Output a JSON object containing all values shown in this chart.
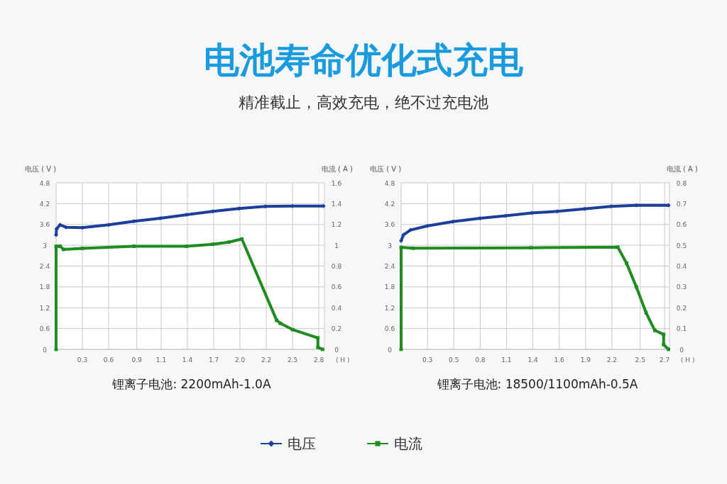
{
  "chart_data": [
    {
      "type": "other",
      "title": "电池寿命优化式充电",
      "subtitle": "精准截止，高效充电，绝不过充电池"
    },
    {
      "type": "line",
      "title": "锂离子电池: 2200mAh-1.0A",
      "ylabel": "电压 ( V )",
      "y2label": "电流 ( A )",
      "xlabel": "( H )",
      "xlim": [
        0,
        2.86
      ],
      "ylim": [
        0,
        4.8
      ],
      "y2lim": [
        0,
        1.6
      ],
      "xticks": [
        {
          "value": 0.28,
          "label": "0.3"
        },
        {
          "value": 0.56,
          "label": "0.6"
        },
        {
          "value": 0.86,
          "label": "0.9"
        },
        {
          "value": 1.12,
          "label": "1.1"
        },
        {
          "value": 1.4,
          "label": "1.4"
        },
        {
          "value": 1.68,
          "label": "1.7"
        },
        {
          "value": 1.96,
          "label": "2.0"
        },
        {
          "value": 2.24,
          "label": "2.2"
        },
        {
          "value": 2.52,
          "label": "2.5"
        },
        {
          "value": 2.8,
          "label": "2.8"
        }
      ],
      "yticks": [
        0,
        0.6,
        1.2,
        1.8,
        2.4,
        3,
        3.6,
        4.2,
        4.8
      ],
      "y2ticks": [
        0,
        0.2,
        0.4,
        0.6,
        0.8,
        1,
        1.2,
        1.4,
        1.6
      ],
      "grid": true,
      "legend": "bottom",
      "series": [
        {
          "name": "电压",
          "color": "#1c3f9e",
          "marker": "diamond",
          "x": [
            0,
            0.005,
            0.043,
            0.105,
            0.28,
            0.56,
            0.83,
            1.11,
            1.39,
            1.67,
            1.95,
            2.23,
            2.52,
            2.85
          ],
          "values": [
            3.3,
            3.47,
            3.59,
            3.52,
            3.51,
            3.59,
            3.69,
            3.78,
            3.88,
            3.98,
            4.06,
            4.12,
            4.13,
            4.13
          ]
        },
        {
          "name": "电流",
          "color": "#1e8c1e",
          "marker": "square",
          "axis": "y2",
          "x": [
            0,
            0,
            0.043,
            0.08,
            0.28,
            0.83,
            1.39,
            1.67,
            1.84,
            1.98,
            2.35,
            2.39,
            2.52,
            2.79,
            2.79,
            2.84
          ],
          "values": [
            0,
            0.99,
            0.99,
            0.96,
            0.97,
            0.99,
            0.99,
            1.01,
            1.03,
            1.06,
            0.28,
            0.25,
            0.19,
            0.11,
            0.02,
            0
          ]
        }
      ]
    },
    {
      "type": "line",
      "title": "锂离子电池: 18500/1100mAh-0.5A",
      "ylabel": "电压 ( V )",
      "y2label": "电流 ( A )",
      "xlabel": "( H )",
      "xlim": [
        0,
        2.75
      ],
      "ylim": [
        0,
        4.8
      ],
      "y2lim": [
        0,
        0.8
      ],
      "xticks": [
        {
          "value": 0.27,
          "label": "0.3"
        },
        {
          "value": 0.54,
          "label": "0.5"
        },
        {
          "value": 0.81,
          "label": "0.8"
        },
        {
          "value": 1.08,
          "label": "1.1"
        },
        {
          "value": 1.35,
          "label": "1.4"
        },
        {
          "value": 1.62,
          "label": "1.6"
        },
        {
          "value": 1.89,
          "label": "1.9"
        },
        {
          "value": 2.16,
          "label": "2.2"
        },
        {
          "value": 2.45,
          "label": "2.5"
        },
        {
          "value": 2.7,
          "label": "2.7"
        }
      ],
      "yticks": [
        0,
        0.6,
        1.2,
        1.8,
        2.4,
        3,
        3.6,
        4.2,
        4.8
      ],
      "y2ticks": [
        0,
        0.1,
        0.2,
        0.3,
        0.4,
        0.5,
        0.6,
        0.7,
        0.8
      ],
      "grid": true,
      "series": [
        {
          "color": "#1c3f9e",
          "marker": "diamond",
          "x": [
            0,
            0.024,
            0.096,
            0.27,
            0.53,
            0.81,
            1.07,
            1.34,
            1.6,
            1.88,
            2.15,
            2.41,
            2.74
          ],
          "values": [
            3.13,
            3.3,
            3.44,
            3.56,
            3.68,
            3.78,
            3.85,
            3.93,
            3.98,
            4.05,
            4.12,
            4.15,
            4.15
          ]
        },
        {
          "color": "#1e8c1e",
          "marker": "square",
          "axis": "y2",
          "x": [
            0,
            0,
            0.12,
            1.33,
            2.22,
            2.31,
            2.41,
            2.51,
            2.6,
            2.69,
            2.69,
            2.74
          ],
          "values": [
            0,
            0.49,
            0.486,
            0.488,
            0.491,
            0.414,
            0.3,
            0.176,
            0.091,
            0.072,
            0.023,
            0
          ]
        }
      ]
    }
  ]
}
